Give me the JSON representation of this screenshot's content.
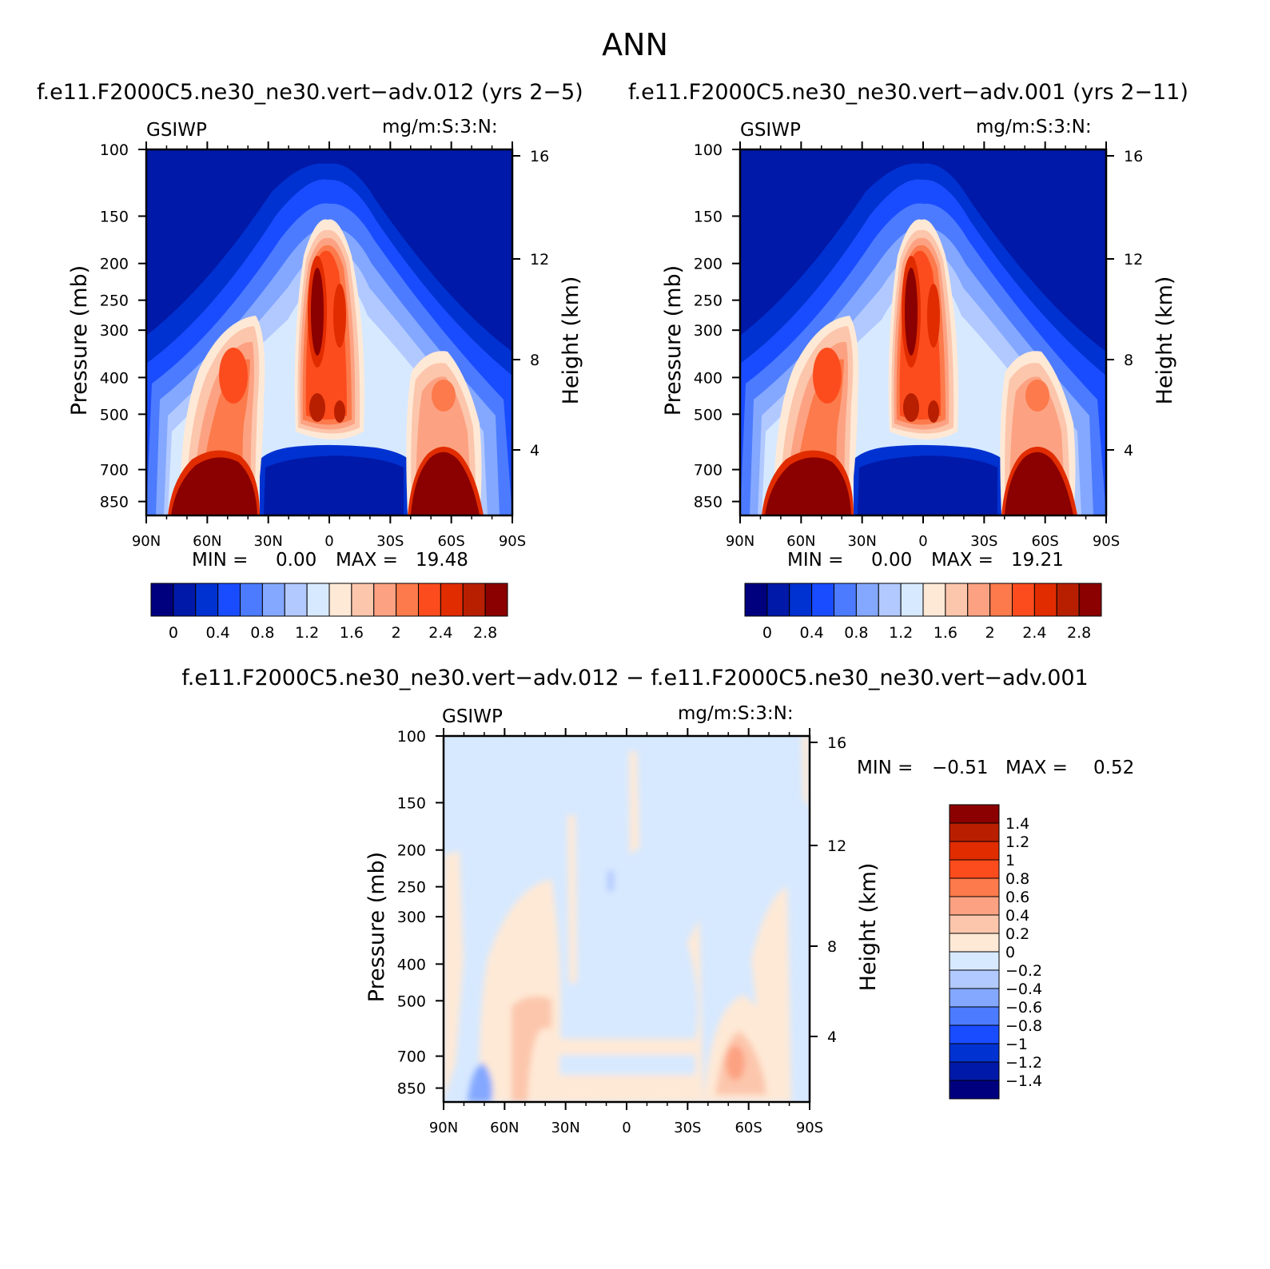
{
  "figure": {
    "title": "ANN",
    "panel1_title": "f.e11.F2000C5.ne30_ne30.vert-adv.012 (yrs 2-5)",
    "panel2_title": "f.e11.F2000C5.ne30_ne30.vert-adv.001 (yrs 2-11)",
    "diff_title": "f.e11.F2000C5.ne30_ne30.vert-adv.012 - f.e11.F2000C5.ne30_ne30.vert-adv.001"
  },
  "chart_data": [
    {
      "type": "heatmap",
      "variable": "GSIWP",
      "units": "mg/m:S:3:N:",
      "xlabel": "",
      "ylabel": "Pressure (mb)",
      "y2label": "Height (km)",
      "x_ticks": [
        "90N",
        "60N",
        "30N",
        "0",
        "30S",
        "60S",
        "90S"
      ],
      "y_ticks": [
        100,
        150,
        200,
        250,
        300,
        400,
        500,
        700,
        850
      ],
      "y2_ticks": [
        16,
        12,
        8,
        4
      ],
      "min_label": "MIN =",
      "min": "0.00",
      "max_label": "MAX =",
      "max": "19.48",
      "colorbar_labels": [
        "0",
        "0.4",
        "0.8",
        "1.2",
        "1.6",
        "2",
        "2.4",
        "2.8"
      ],
      "colors": [
        "#00007f",
        "#0019a8",
        "#0032d1",
        "#1a4cff",
        "#4c7bff",
        "#84a8ff",
        "#b2c9ff",
        "#d7e9ff",
        "#fee9d6",
        "#fcc6ac",
        "#fca282",
        "#fc7a4b",
        "#fc4c1d",
        "#e12c00",
        "#b81f00",
        "#8b0000"
      ]
    },
    {
      "type": "heatmap",
      "variable": "GSIWP",
      "units": "mg/m:S:3:N:",
      "xlabel": "",
      "ylabel": "Pressure (mb)",
      "y2label": "Height (km)",
      "x_ticks": [
        "90N",
        "60N",
        "30N",
        "0",
        "30S",
        "60S",
        "90S"
      ],
      "y_ticks": [
        100,
        150,
        200,
        250,
        300,
        400,
        500,
        700,
        850
      ],
      "y2_ticks": [
        16,
        12,
        8,
        4
      ],
      "min_label": "MIN =",
      "min": "0.00",
      "max_label": "MAX =",
      "max": "19.21",
      "colorbar_labels": [
        "0",
        "0.4",
        "0.8",
        "1.2",
        "1.6",
        "2",
        "2.4",
        "2.8"
      ],
      "colors": [
        "#00007f",
        "#0019a8",
        "#0032d1",
        "#1a4cff",
        "#4c7bff",
        "#84a8ff",
        "#b2c9ff",
        "#d7e9ff",
        "#fee9d6",
        "#fcc6ac",
        "#fca282",
        "#fc7a4b",
        "#fc4c1d",
        "#e12c00",
        "#b81f00",
        "#8b0000"
      ]
    },
    {
      "type": "heatmap",
      "variable": "GSIWP",
      "units": "mg/m:S:3:N:",
      "xlabel": "",
      "ylabel": "Pressure (mb)",
      "y2label": "Height (km)",
      "x_ticks": [
        "90N",
        "60N",
        "30N",
        "0",
        "30S",
        "60S",
        "90S"
      ],
      "y_ticks": [
        100,
        150,
        200,
        250,
        300,
        400,
        500,
        700,
        850
      ],
      "y2_ticks": [
        16,
        12,
        8,
        4
      ],
      "min_label": "MIN =",
      "min": "-0.51",
      "max_label": "MAX =",
      "max": "0.52",
      "colorbar_labels": [
        "1.4",
        "1.2",
        "1",
        "0.8",
        "0.6",
        "0.4",
        "0.2",
        "0",
        "-0.2",
        "-0.4",
        "-0.6",
        "-0.8",
        "-1",
        "-1.2",
        "-1.4"
      ],
      "colors": [
        "#8b0000",
        "#b81f00",
        "#e12c00",
        "#fc4c1d",
        "#fc7a4b",
        "#fca282",
        "#fcc6ac",
        "#fee9d6",
        "#d7e9ff",
        "#b2c9ff",
        "#84a8ff",
        "#4c7bff",
        "#1a4cff",
        "#0032d1",
        "#0019a8",
        "#00007f"
      ]
    }
  ]
}
